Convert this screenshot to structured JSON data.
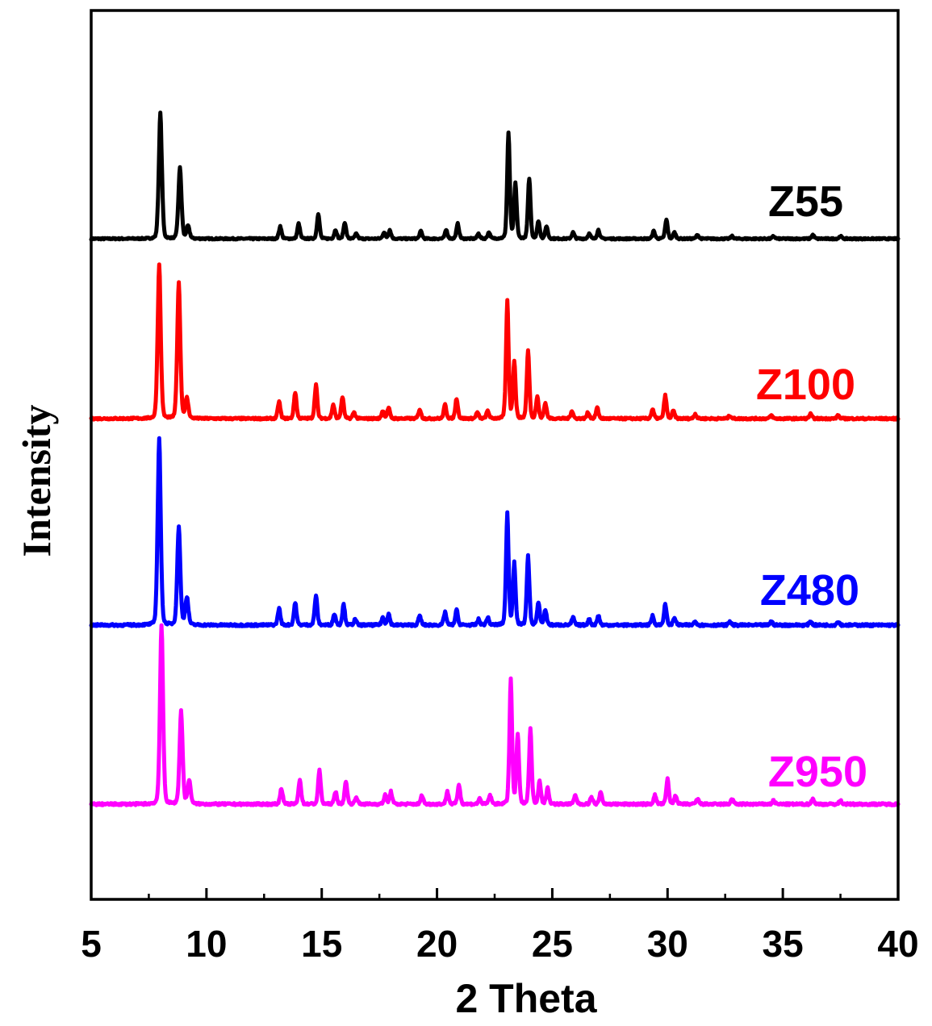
{
  "chart_data": {
    "type": "line",
    "xlabel": "2 Theta",
    "ylabel": "Intensity",
    "xlim": [
      5,
      40
    ],
    "x_ticks": [
      5,
      10,
      15,
      20,
      25,
      30,
      35,
      40
    ],
    "y_ticks_shown": false,
    "grid": false,
    "legend": "inline labels at right, above each trace",
    "stacked_offset_traces": true,
    "series": [
      {
        "name": "Z55",
        "color": "#000000",
        "peaks": [
          [
            8.0,
            1.0
          ],
          [
            8.85,
            0.57
          ],
          [
            9.2,
            0.1
          ],
          [
            13.2,
            0.1
          ],
          [
            14.0,
            0.12
          ],
          [
            14.85,
            0.2
          ],
          [
            15.6,
            0.07
          ],
          [
            16.0,
            0.13
          ],
          [
            16.5,
            0.04
          ],
          [
            17.7,
            0.05
          ],
          [
            17.95,
            0.07
          ],
          [
            19.3,
            0.06
          ],
          [
            20.4,
            0.07
          ],
          [
            20.9,
            0.12
          ],
          [
            21.8,
            0.04
          ],
          [
            22.25,
            0.05
          ],
          [
            23.1,
            0.84
          ],
          [
            23.4,
            0.44
          ],
          [
            24.0,
            0.48
          ],
          [
            24.4,
            0.14
          ],
          [
            24.75,
            0.1
          ],
          [
            25.9,
            0.05
          ],
          [
            26.6,
            0.04
          ],
          [
            27.0,
            0.07
          ],
          [
            29.4,
            0.06
          ],
          [
            29.95,
            0.15
          ],
          [
            30.3,
            0.05
          ],
          [
            31.3,
            0.03
          ],
          [
            32.8,
            0.02
          ],
          [
            34.6,
            0.02
          ],
          [
            36.3,
            0.03
          ],
          [
            37.5,
            0.02
          ]
        ]
      },
      {
        "name": "Z100",
        "color": "#ff0000",
        "peaks": [
          [
            7.95,
            1.0
          ],
          [
            8.8,
            0.88
          ],
          [
            9.15,
            0.13
          ],
          [
            13.15,
            0.11
          ],
          [
            13.85,
            0.17
          ],
          [
            14.75,
            0.22
          ],
          [
            15.5,
            0.09
          ],
          [
            15.9,
            0.14
          ],
          [
            16.4,
            0.04
          ],
          [
            17.65,
            0.05
          ],
          [
            17.9,
            0.07
          ],
          [
            19.25,
            0.06
          ],
          [
            20.35,
            0.09
          ],
          [
            20.85,
            0.13
          ],
          [
            21.75,
            0.04
          ],
          [
            22.2,
            0.05
          ],
          [
            23.05,
            0.76
          ],
          [
            23.35,
            0.37
          ],
          [
            23.95,
            0.44
          ],
          [
            24.35,
            0.14
          ],
          [
            24.7,
            0.1
          ],
          [
            25.85,
            0.05
          ],
          [
            26.55,
            0.04
          ],
          [
            26.95,
            0.07
          ],
          [
            29.35,
            0.06
          ],
          [
            29.9,
            0.15
          ],
          [
            30.25,
            0.05
          ],
          [
            31.2,
            0.03
          ],
          [
            32.7,
            0.02
          ],
          [
            34.5,
            0.02
          ],
          [
            36.2,
            0.03
          ],
          [
            37.4,
            0.02
          ]
        ]
      },
      {
        "name": "Z480",
        "color": "#0000ff",
        "peaks": [
          [
            7.95,
            1.0
          ],
          [
            8.8,
            0.53
          ],
          [
            9.15,
            0.15
          ],
          [
            13.15,
            0.09
          ],
          [
            13.85,
            0.12
          ],
          [
            14.75,
            0.16
          ],
          [
            15.55,
            0.06
          ],
          [
            15.95,
            0.11
          ],
          [
            16.45,
            0.03
          ],
          [
            17.65,
            0.04
          ],
          [
            17.9,
            0.06
          ],
          [
            19.25,
            0.05
          ],
          [
            20.35,
            0.07
          ],
          [
            20.85,
            0.08
          ],
          [
            21.8,
            0.03
          ],
          [
            22.2,
            0.04
          ],
          [
            23.05,
            0.6
          ],
          [
            23.35,
            0.33
          ],
          [
            23.95,
            0.37
          ],
          [
            24.4,
            0.12
          ],
          [
            24.7,
            0.08
          ],
          [
            25.9,
            0.04
          ],
          [
            26.6,
            0.03
          ],
          [
            27.0,
            0.05
          ],
          [
            29.35,
            0.05
          ],
          [
            29.9,
            0.11
          ],
          [
            30.3,
            0.04
          ],
          [
            31.2,
            0.02
          ],
          [
            32.7,
            0.02
          ],
          [
            34.5,
            0.02
          ],
          [
            36.2,
            0.02
          ],
          [
            37.4,
            0.02
          ]
        ]
      },
      {
        "name": "Z950",
        "color": "#ff00ff",
        "peaks": [
          [
            8.05,
            1.0
          ],
          [
            8.9,
            0.52
          ],
          [
            9.25,
            0.13
          ],
          [
            13.25,
            0.09
          ],
          [
            14.05,
            0.14
          ],
          [
            14.9,
            0.19
          ],
          [
            15.6,
            0.07
          ],
          [
            16.05,
            0.13
          ],
          [
            16.5,
            0.04
          ],
          [
            17.75,
            0.05
          ],
          [
            18.0,
            0.07
          ],
          [
            19.35,
            0.05
          ],
          [
            20.45,
            0.07
          ],
          [
            20.95,
            0.11
          ],
          [
            21.85,
            0.03
          ],
          [
            22.3,
            0.05
          ],
          [
            23.2,
            0.7
          ],
          [
            23.5,
            0.39
          ],
          [
            24.05,
            0.42
          ],
          [
            24.45,
            0.13
          ],
          [
            24.8,
            0.09
          ],
          [
            26.0,
            0.05
          ],
          [
            26.7,
            0.04
          ],
          [
            27.1,
            0.07
          ],
          [
            29.45,
            0.05
          ],
          [
            30.0,
            0.14
          ],
          [
            30.35,
            0.05
          ],
          [
            31.3,
            0.03
          ],
          [
            32.8,
            0.03
          ],
          [
            34.6,
            0.02
          ],
          [
            36.3,
            0.03
          ],
          [
            37.5,
            0.02
          ]
        ]
      }
    ]
  }
}
